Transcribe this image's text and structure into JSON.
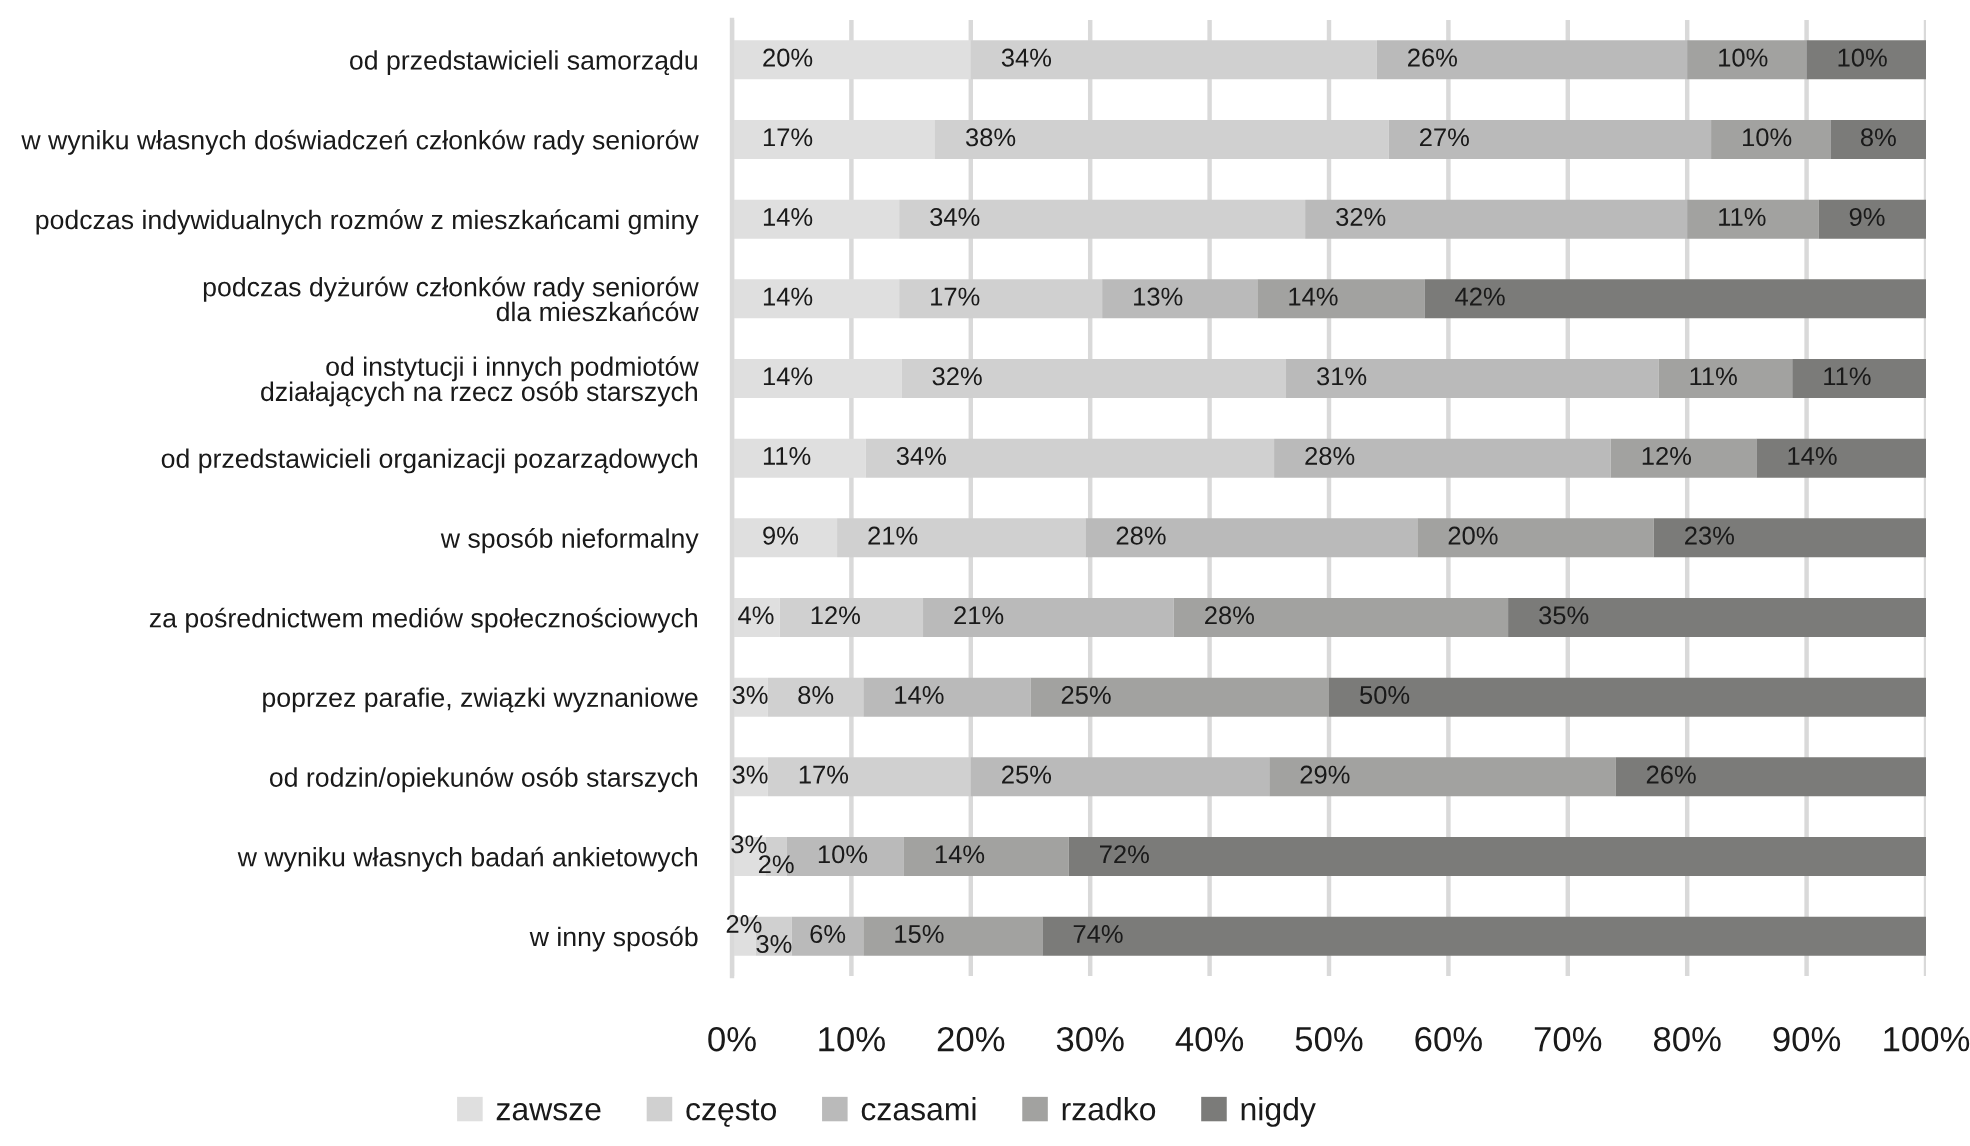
{
  "chart_data": {
    "type": "bar",
    "orientation": "horizontal",
    "stacked": true,
    "categories": [
      "od przedstawicieli samorządu",
      "w wyniku własnych doświadczeń członków rady seniorów",
      "podczas indywidualnych rozmów z mieszkańcami gminy",
      "podczas dyżurów członków rady seniorów\ndla mieszkańców",
      "od instytucji i innych podmiotów\ndziałających na rzecz osób starszych",
      "od przedstawicieli organizacji pozarządowych",
      "w sposób nieformalny",
      "za pośrednictwem mediów społecznościowych",
      "poprzez parafie, związki wyznaniowe",
      "od rodzin/opiekunów osób starszych",
      "w wyniku własnych badań ankietowych",
      "w inny sposób"
    ],
    "series": [
      {
        "name": "zawsze",
        "color": "#dfdfdf",
        "values": [
          20,
          17,
          14,
          14,
          14.2,
          11.2,
          8.8,
          4,
          3,
          3,
          2.8,
          2
        ],
        "value_labels": [
          "20%",
          "17%",
          "14%",
          "14%",
          "14%",
          "11%",
          "9%",
          "4%",
          "3%",
          "3%",
          "3%",
          "2%"
        ]
      },
      {
        "name": "często",
        "color": "#d0d0d0",
        "values": [
          34,
          38,
          34,
          17,
          32.2,
          34.2,
          20.8,
          12,
          8,
          17,
          1.8,
          3
        ],
        "value_labels": [
          "34%",
          "38%",
          "34%",
          "17%",
          "32%",
          "34%",
          "21%",
          "12%",
          "8%",
          "17%",
          "2%",
          "3%"
        ]
      },
      {
        "name": "czasami",
        "color": "#bababa",
        "values": [
          26,
          27,
          32,
          13,
          31.2,
          28.2,
          27.8,
          21,
          14,
          25,
          9.8,
          6
        ],
        "value_labels": [
          "26%",
          "27%",
          "32%",
          "13%",
          "31%",
          "28%",
          "28%",
          "21%",
          "14%",
          "25%",
          "10%",
          "6%"
        ]
      },
      {
        "name": "rzadko",
        "color": "#a2a2a0",
        "values": [
          10,
          10,
          11,
          14,
          11.2,
          12.2,
          19.8,
          28,
          25,
          29,
          13.8,
          15
        ],
        "value_labels": [
          "10%",
          "10%",
          "11%",
          "14%",
          "11%",
          "12%",
          "20%",
          "28%",
          "25%",
          "29%",
          "14%",
          "15%"
        ]
      },
      {
        "name": "nigdy",
        "color": "#7b7b79",
        "values": [
          10,
          8,
          9,
          42,
          11.2,
          14.2,
          22.8,
          35,
          50,
          26,
          71.8,
          74
        ],
        "value_labels": [
          "10%",
          "8%",
          "9%",
          "42%",
          "11%",
          "14%",
          "23%",
          "35%",
          "50%",
          "26%",
          "72%",
          "74%"
        ]
      }
    ],
    "xlim": [
      0,
      100
    ],
    "xticks": [
      {
        "value": 0,
        "label": "0%"
      },
      {
        "value": 10,
        "label": "10%"
      },
      {
        "value": 20,
        "label": "20%"
      },
      {
        "value": 30,
        "label": "30%"
      },
      {
        "value": 40,
        "label": "40%"
      },
      {
        "value": 50,
        "label": "50%"
      },
      {
        "value": 60,
        "label": "60%"
      },
      {
        "value": 70,
        "label": "70%"
      },
      {
        "value": 80,
        "label": "80%"
      },
      {
        "value": 90,
        "label": "90%"
      },
      {
        "value": 100,
        "label": "100%"
      }
    ],
    "grid": "x",
    "legend": "bottom"
  }
}
